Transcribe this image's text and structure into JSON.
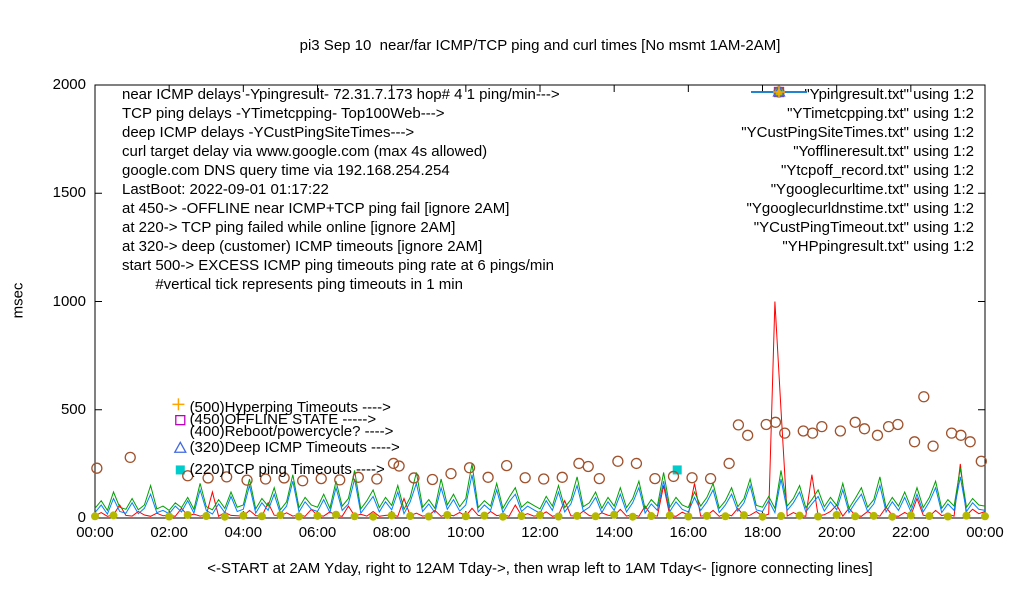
{
  "chart_data": {
    "type": "mixed-line-scatter",
    "title": "pi3 Sep 10  near/far ICMP/TCP ping and curl times [No msmt 1AM-2AM]",
    "xlabel": "<-START at 2AM Yday, right to 12AM Tday->, then wrap left to 1AM Tday<- [ignore connecting lines]",
    "ylabel": "msec",
    "xlim_hours": [
      0,
      24
    ],
    "ylim": [
      0,
      2000
    ],
    "grid": false,
    "legend_position": "top-right",
    "x_ticks": [
      {
        "h": 0,
        "label": "00:00"
      },
      {
        "h": 2,
        "label": "02:00"
      },
      {
        "h": 4,
        "label": "04:00"
      },
      {
        "h": 6,
        "label": "06:00"
      },
      {
        "h": 8,
        "label": "08:00"
      },
      {
        "h": 10,
        "label": "10:00"
      },
      {
        "h": 12,
        "label": "12:00"
      },
      {
        "h": 14,
        "label": "14:00"
      },
      {
        "h": 16,
        "label": "16:00"
      },
      {
        "h": 18,
        "label": "18:00"
      },
      {
        "h": 20,
        "label": "20:00"
      },
      {
        "h": 22,
        "label": "22:00"
      },
      {
        "h": 24,
        "label": "00:00"
      }
    ],
    "y_ticks": [
      {
        "v": 0,
        "label": "0"
      },
      {
        "v": 500,
        "label": "500"
      },
      {
        "v": 1000,
        "label": "1000"
      },
      {
        "v": 1500,
        "label": "1500"
      },
      {
        "v": 2000,
        "label": "2000"
      }
    ],
    "x_step_minutes": 10,
    "info_lines": [
      "near ICMP delays -Ypingresult- 72.31.7.173 hop# 4 1 ping/min--->",
      "TCP ping delays -YTimetcpping- Top100Web--->",
      "deep ICMP delays -YCustPingSiteTimes--->",
      "curl target delay via www.google.com (max 4s allowed)",
      "google.com DNS query time via 192.168.254.254",
      "LastBoot: 2022-09-01 01:17:22",
      "at 450-> -OFFLINE near ICMP+TCP ping fail [ignore 2AM]",
      "at 220-> TCP ping failed while online [ignore 2AM]",
      "at 320-> deep (customer) ICMP timeouts [ignore 2AM]",
      "start 500-> EXCESS ICMP ping timeouts ping rate at 6 pings/min",
      "        #vertical tick represents ping timeouts in 1 min"
    ],
    "callouts": [
      {
        "tx": 2.55,
        "y": 510,
        "text": "(500)Hyperping Timeouts ---->"
      },
      {
        "tx": 2.55,
        "y": 452,
        "text": "(450)OFFLINE STATE ----->"
      },
      {
        "tx": 2.55,
        "y": 395,
        "text": "(400)Reboot/powercycle? ---->"
      },
      {
        "tx": 2.55,
        "y": 322,
        "text": "(320)Deep ICMP Timeouts ---->"
      },
      {
        "tx": 2.55,
        "y": 222,
        "text": "(220)TCP ping Timeouts ---->"
      }
    ],
    "series": [
      {
        "name": "Ypingresult",
        "legend_label": "\"Ypingresult.txt\" using 1:2",
        "kind": "line",
        "color": "#ff0000",
        "values": [
          10,
          25,
          8,
          15,
          60,
          12,
          9,
          30,
          14,
          8,
          22,
          10,
          12,
          8,
          45,
          10,
          18,
          9,
          14,
          120,
          8,
          26,
          12,
          10,
          9,
          35,
          11,
          8,
          70,
          13,
          10,
          24,
          9,
          15,
          8,
          40,
          11,
          9,
          28,
          12,
          8,
          55,
          10,
          17,
          9,
          30,
          8,
          12,
          14,
          8,
          90,
          11,
          22,
          9,
          13,
          35,
          8,
          18,
          10,
          26,
          9,
          45,
          12,
          8,
          30,
          11,
          15,
          8,
          60,
          10,
          20,
          9,
          12,
          28,
          8,
          14,
          80,
          10,
          9,
          32,
          11,
          8,
          24,
          13,
          10,
          40,
          9,
          16,
          8,
          55,
          12,
          9,
          150,
          11,
          8,
          27,
          14,
          160,
          9,
          12,
          35,
          8,
          20,
          10,
          45,
          9,
          13,
          30,
          8,
          18,
          1000,
          500,
          9,
          25,
          12,
          8,
          200,
          10,
          15,
          30,
          60,
          9,
          45,
          12,
          8,
          30,
          14,
          9,
          50,
          11,
          8,
          26,
          10,
          90,
          13,
          8,
          35,
          11,
          18,
          9,
          250,
          12,
          40,
          20,
          30
        ]
      },
      {
        "name": "YTimetcpping",
        "legend_label": "\"YTimetcpping.txt\" using 1:2",
        "kind": "line",
        "color": "#00a000",
        "values": [
          45,
          80,
          35,
          120,
          50,
          40,
          90,
          38,
          60,
          150,
          42,
          55,
          35,
          70,
          48,
          95,
          40,
          160,
          52,
          38,
          85,
          45,
          120,
          50,
          60,
          180,
          42,
          90,
          55,
          140,
          38,
          75,
          200,
          48,
          95,
          60,
          50,
          110,
          45,
          170,
          55,
          90,
          220,
          42,
          80,
          130,
          48,
          95,
          58,
          150,
          40,
          95,
          210,
          50,
          85,
          45,
          180,
          60,
          110,
          52,
          90,
          250,
          48,
          80,
          55,
          160,
          45,
          95,
          140,
          50,
          75,
          58,
          42,
          100,
          55,
          150,
          48,
          85,
          190,
          52,
          70,
          120,
          45,
          95,
          55,
          140,
          48,
          90,
          170,
          42,
          85,
          55,
          210,
          50,
          95,
          60,
          48,
          120,
          55,
          95,
          160,
          45,
          80,
          140,
          52,
          90,
          180,
          58,
          50,
          100,
          45,
          220,
          55,
          90,
          150,
          48,
          85,
          130,
          52,
          95,
          58,
          160,
          45,
          90,
          140,
          50,
          85,
          190,
          48,
          95,
          55,
          120,
          50,
          140,
          48,
          95,
          170,
          45,
          85,
          55,
          230,
          50,
          90,
          60,
          55
        ]
      },
      {
        "name": "YCustPingSiteTimes",
        "legend_label": "\"YCustPingSiteTimes.txt\" using 1:2",
        "kind": "line",
        "color": "#0080ff",
        "values": [
          25,
          60,
          18,
          90,
          30,
          22,
          70,
          20,
          45,
          110,
          25,
          35,
          20,
          55,
          28,
          80,
          22,
          130,
          35,
          18,
          65,
          25,
          100,
          30,
          40,
          150,
          22,
          70,
          35,
          110,
          20,
          55,
          170,
          28,
          75,
          40,
          30,
          85,
          25,
          140,
          35,
          65,
          180,
          22,
          60,
          100,
          28,
          75,
          38,
          120,
          20,
          75,
          160,
          30,
          65,
          25,
          140,
          40,
          85,
          32,
          60,
          200,
          28,
          60,
          35,
          130,
          25,
          75,
          110,
          30,
          55,
          38,
          22,
          80,
          35,
          120,
          28,
          65,
          150,
          32,
          50,
          95,
          25,
          75,
          35,
          110,
          28,
          70,
          140,
          22,
          65,
          35,
          170,
          30,
          75,
          40,
          28,
          95,
          35,
          75,
          130,
          25,
          60,
          110,
          32,
          70,
          150,
          38,
          30,
          80,
          25,
          180,
          35,
          70,
          120,
          28,
          65,
          100,
          32,
          75,
          38,
          130,
          25,
          70,
          110,
          30,
          65,
          150,
          28,
          75,
          35,
          95,
          30,
          110,
          28,
          75,
          140,
          25,
          65,
          35,
          190,
          30,
          70,
          40,
          35
        ]
      },
      {
        "name": "Yofflineresult",
        "legend_label": "\"Yofflineresult.txt\" using 1:2",
        "kind": "scatter",
        "marker": "square-open",
        "color": "#bf00bf",
        "points": [
          [
            2.3,
            452
          ]
        ]
      },
      {
        "name": "Ytcpoff_record",
        "legend_label": "\"Ytcpoff_record.txt\" using 1:2",
        "kind": "scatter",
        "marker": "square-filled",
        "color": "#00cccc",
        "points": [
          [
            2.3,
            222
          ],
          [
            15.7,
            222
          ]
        ]
      },
      {
        "name": "Ygooglecurltime",
        "legend_label": "\"Ygooglecurltime.txt\" using 1:2",
        "kind": "scatter",
        "marker": "circle-open",
        "color": "#a0522d",
        "points": [
          [
            0.05,
            230
          ],
          [
            0.95,
            280
          ],
          [
            2.5,
            195
          ],
          [
            3.05,
            185
          ],
          [
            3.55,
            190
          ],
          [
            4.1,
            175
          ],
          [
            4.6,
            180
          ],
          [
            5.1,
            185
          ],
          [
            5.6,
            172
          ],
          [
            6.1,
            182
          ],
          [
            6.6,
            176
          ],
          [
            7.1,
            188
          ],
          [
            7.6,
            180
          ],
          [
            8.05,
            252
          ],
          [
            8.2,
            240
          ],
          [
            8.6,
            185
          ],
          [
            9.1,
            178
          ],
          [
            9.6,
            205
          ],
          [
            10.1,
            232
          ],
          [
            10.6,
            188
          ],
          [
            11.1,
            242
          ],
          [
            11.6,
            186
          ],
          [
            12.1,
            180
          ],
          [
            12.6,
            188
          ],
          [
            13.05,
            252
          ],
          [
            13.3,
            238
          ],
          [
            13.6,
            182
          ],
          [
            14.1,
            262
          ],
          [
            14.6,
            252
          ],
          [
            15.1,
            182
          ],
          [
            15.6,
            192
          ],
          [
            16.1,
            186
          ],
          [
            16.6,
            182
          ],
          [
            17.1,
            252
          ],
          [
            17.35,
            430
          ],
          [
            17.6,
            382
          ],
          [
            18.1,
            432
          ],
          [
            18.35,
            442
          ],
          [
            18.6,
            392
          ],
          [
            19.1,
            402
          ],
          [
            19.35,
            392
          ],
          [
            19.6,
            422
          ],
          [
            20.1,
            402
          ],
          [
            20.5,
            442
          ],
          [
            20.75,
            412
          ],
          [
            21.1,
            382
          ],
          [
            21.4,
            422
          ],
          [
            21.65,
            432
          ],
          [
            22.1,
            352
          ],
          [
            22.35,
            560
          ],
          [
            22.6,
            332
          ],
          [
            23.1,
            392
          ],
          [
            23.35,
            382
          ],
          [
            23.6,
            352
          ],
          [
            23.9,
            262
          ]
        ]
      },
      {
        "name": "Ygooglecurldnstime",
        "legend_label": "\"Ygooglecurldnstime.txt\" using 1:2",
        "kind": "scatter",
        "marker": "circle-filled",
        "color": "#b5b800",
        "points": [
          [
            0,
            8
          ],
          [
            0.5,
            12
          ],
          [
            2,
            7
          ],
          [
            2.5,
            14
          ],
          [
            3,
            9
          ],
          [
            3.5,
            6
          ],
          [
            4,
            11
          ],
          [
            4.5,
            8
          ],
          [
            5,
            13
          ],
          [
            5.5,
            7
          ],
          [
            6,
            10
          ],
          [
            6.5,
            15
          ],
          [
            7,
            8
          ],
          [
            7.5,
            6
          ],
          [
            8,
            12
          ],
          [
            8.5,
            9
          ],
          [
            9,
            7
          ],
          [
            9.5,
            14
          ],
          [
            10,
            8
          ],
          [
            10.5,
            11
          ],
          [
            11,
            6
          ],
          [
            11.5,
            9
          ],
          [
            12,
            13
          ],
          [
            12.5,
            7
          ],
          [
            13,
            10
          ],
          [
            13.5,
            8
          ],
          [
            14,
            15
          ],
          [
            14.5,
            6
          ],
          [
            15,
            9
          ],
          [
            15.5,
            12
          ],
          [
            16,
            7
          ],
          [
            16.5,
            10
          ],
          [
            17,
            8
          ],
          [
            17.5,
            13
          ],
          [
            18,
            6
          ],
          [
            18.5,
            9
          ],
          [
            19,
            11
          ],
          [
            19.5,
            7
          ],
          [
            20,
            14
          ],
          [
            20.5,
            8
          ],
          [
            21,
            10
          ],
          [
            21.5,
            6
          ],
          [
            22,
            12
          ],
          [
            22.5,
            9
          ],
          [
            23,
            7
          ],
          [
            23.5,
            11
          ],
          [
            24,
            8
          ]
        ]
      },
      {
        "name": "YCustPingTimeout",
        "legend_label": "\"YCustPingTimeout.txt\" using 1:2",
        "kind": "scatter",
        "marker": "triangle-open",
        "color": "#4169e1",
        "points": [
          [
            2.3,
            322
          ]
        ]
      },
      {
        "name": "YHPpingresult",
        "legend_label": "\"YHPpingresult.txt\" using 1:2",
        "kind": "scatter",
        "marker": "plus",
        "color": "#ffa500",
        "points": [
          [
            2.25,
            525
          ]
        ]
      }
    ]
  }
}
